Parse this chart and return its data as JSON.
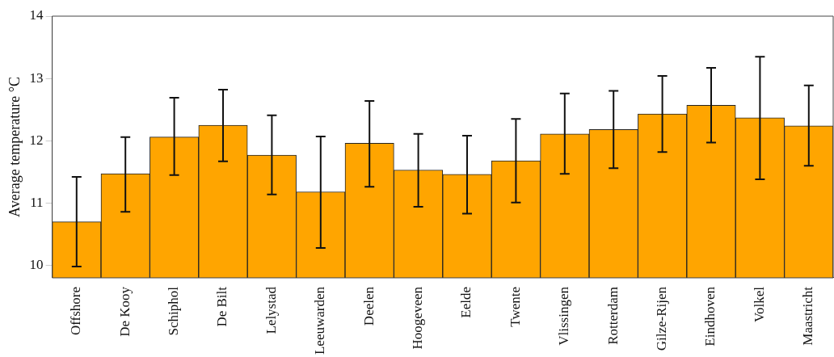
{
  "chart_data": {
    "type": "bar",
    "ylabel": "Average temperature °C",
    "categories": [
      "Offshore",
      "De Kooy",
      "Schiphol",
      "De Bilt",
      "Lelystad",
      "Leeuwarden",
      "Deelen",
      "Hoogeveen",
      "Eelde",
      "Twente",
      "Vlissingen",
      "Rotterdam",
      "Gilze-Rijen",
      "Eindhoven",
      "Volkel",
      "Maastricht"
    ],
    "values": [
      10.7,
      11.47,
      12.06,
      12.25,
      11.77,
      11.18,
      11.96,
      11.53,
      11.46,
      11.68,
      12.11,
      12.18,
      12.43,
      12.57,
      12.37,
      12.24
    ],
    "errors": [
      [
        9.98,
        11.42
      ],
      [
        10.86,
        12.06
      ],
      [
        11.45,
        12.69
      ],
      [
        11.67,
        12.82
      ],
      [
        11.14,
        12.41
      ],
      [
        10.28,
        12.07
      ],
      [
        11.26,
        12.64
      ],
      [
        10.94,
        12.11
      ],
      [
        10.83,
        12.08
      ],
      [
        11.01,
        12.35
      ],
      [
        11.47,
        12.76
      ],
      [
        11.56,
        12.8
      ],
      [
        11.82,
        13.04
      ],
      [
        11.97,
        13.17
      ],
      [
        11.38,
        13.35
      ],
      [
        11.6,
        12.89
      ]
    ],
    "color": "#ffa500",
    "ylim": [
      9.8,
      14
    ],
    "yticks": [
      10,
      11,
      12,
      13,
      14
    ],
    "grid": false,
    "legend": false
  }
}
